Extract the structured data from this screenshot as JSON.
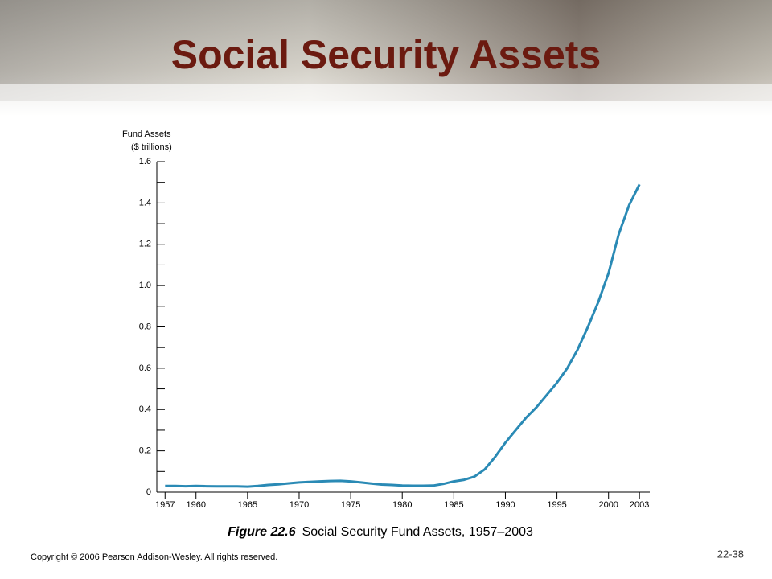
{
  "chart_data": {
    "type": "line",
    "title": "Social Security Assets",
    "ylabel": [
      "Fund Assets",
      "($ trillions)"
    ],
    "caption_label": "Figure 22.6",
    "caption": "Social Security Fund Assets, 1957–2003",
    "copyright": "Copyright © 2006 Pearson Addison-Wesley. All rights reserved.",
    "page_number": "22-38",
    "color": "#2a8ab5",
    "x": [
      1957,
      1958,
      1959,
      1960,
      1961,
      1962,
      1963,
      1964,
      1965,
      1966,
      1967,
      1968,
      1969,
      1970,
      1971,
      1972,
      1973,
      1974,
      1975,
      1976,
      1977,
      1978,
      1979,
      1980,
      1981,
      1982,
      1983,
      1984,
      1985,
      1986,
      1987,
      1988,
      1989,
      1990,
      1991,
      1992,
      1993,
      1994,
      1995,
      1996,
      1997,
      1998,
      1999,
      2000,
      2001,
      2002,
      2003
    ],
    "values": [
      0.03,
      0.03,
      0.029,
      0.03,
      0.029,
      0.028,
      0.028,
      0.028,
      0.027,
      0.03,
      0.035,
      0.038,
      0.043,
      0.047,
      0.05,
      0.052,
      0.054,
      0.055,
      0.052,
      0.047,
      0.042,
      0.037,
      0.035,
      0.032,
      0.031,
      0.031,
      0.032,
      0.04,
      0.052,
      0.06,
      0.075,
      0.11,
      0.17,
      0.24,
      0.3,
      0.36,
      0.41,
      0.47,
      0.53,
      0.6,
      0.69,
      0.8,
      0.92,
      1.06,
      1.25,
      1.39,
      1.49
    ],
    "xlim": [
      1956.2,
      2004
    ],
    "xticks": [
      1957,
      1960,
      1965,
      1970,
      1975,
      1980,
      1985,
      1990,
      1995,
      2000,
      2003
    ],
    "ylim": [
      0,
      1.6
    ],
    "yticks": [
      0,
      0.2,
      0.4,
      0.6,
      0.8,
      {
        "value": 1,
        "label": "1.0"
      },
      1.2,
      1.4,
      1.6
    ]
  }
}
